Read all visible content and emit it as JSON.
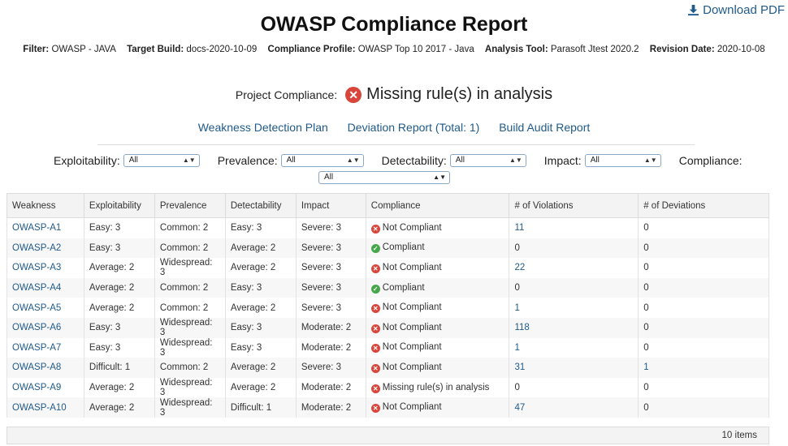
{
  "download_label": "Download PDF",
  "title": "OWASP Compliance Report",
  "filters": [
    {
      "label": "Filter:",
      "value": "OWASP - JAVA"
    },
    {
      "label": "Target Build:",
      "value": "docs-2020-10-09"
    },
    {
      "label": "Compliance Profile:",
      "value": "OWASP Top 10 2017 - Java"
    },
    {
      "label": "Analysis Tool:",
      "value": "Parasoft Jtest 2020.2"
    },
    {
      "label": "Revision Date:",
      "value": "2020-10-08"
    }
  ],
  "project_compliance": {
    "label": "Project Compliance:",
    "status": "Missing rule(s) in analysis"
  },
  "links": {
    "plan": "Weakness Detection Plan",
    "deviation": "Deviation Report (Total: 1)",
    "audit": "Build Audit Report"
  },
  "selectors": {
    "exploitability": {
      "label": "Exploitability:",
      "value": "All"
    },
    "prevalence": {
      "label": "Prevalence:",
      "value": "All"
    },
    "detectability": {
      "label": "Detectability:",
      "value": "All"
    },
    "impact": {
      "label": "Impact:",
      "value": "All"
    },
    "compliance": {
      "label": "Compliance:",
      "value": "All"
    }
  },
  "table": {
    "headers": [
      "Weakness",
      "Exploitability",
      "Prevalence",
      "Detectability",
      "Impact",
      "Compliance",
      "# of Violations",
      "# of Deviations"
    ],
    "rows": [
      [
        "OWASP-A1",
        "Easy: 3",
        "Common: 2",
        "Easy: 3",
        "Severe: 3",
        "Not Compliant",
        "11",
        "0"
      ],
      [
        "OWASP-A2",
        "Easy: 3",
        "Common: 2",
        "Average: 2",
        "Severe: 3",
        "Compliant",
        "0",
        "0"
      ],
      [
        "OWASP-A3",
        "Average: 2",
        "Widespread: 3",
        "Average: 2",
        "Severe: 3",
        "Not Compliant",
        "22",
        "0"
      ],
      [
        "OWASP-A4",
        "Average: 2",
        "Common: 2",
        "Easy: 3",
        "Severe: 3",
        "Compliant",
        "0",
        "0"
      ],
      [
        "OWASP-A5",
        "Average: 2",
        "Common: 2",
        "Average: 2",
        "Severe: 3",
        "Not Compliant",
        "1",
        "0"
      ],
      [
        "OWASP-A6",
        "Easy: 3",
        "Widespread: 3",
        "Easy: 3",
        "Moderate: 2",
        "Not Compliant",
        "118",
        "0"
      ],
      [
        "OWASP-A7",
        "Easy: 3",
        "Widespread: 3",
        "Easy: 3",
        "Moderate: 2",
        "Not Compliant",
        "1",
        "0"
      ],
      [
        "OWASP-A8",
        "Difficult: 1",
        "Common: 2",
        "Average: 2",
        "Severe: 3",
        "Not Compliant",
        "31",
        "1"
      ],
      [
        "OWASP-A9",
        "Average: 2",
        "Widespread: 3",
        "Average: 2",
        "Moderate: 2",
        "Missing rule(s) in analysis",
        "0",
        "0"
      ],
      [
        "OWASP-A10",
        "Average: 2",
        "Widespread: 3",
        "Difficult: 1",
        "Moderate: 2",
        "Not Compliant",
        "47",
        "0"
      ]
    ],
    "footer": "10 items"
  },
  "colors": {
    "link": "#1f5a8a",
    "error": "#d9453b",
    "ok": "#44a84a"
  }
}
